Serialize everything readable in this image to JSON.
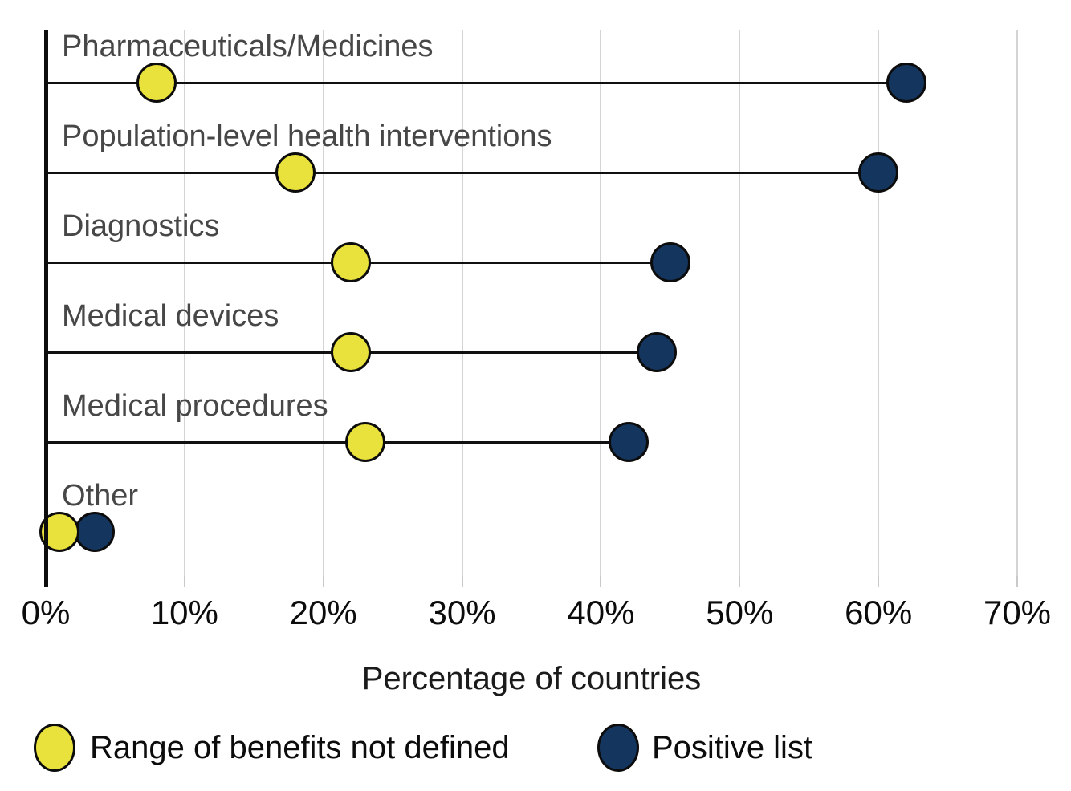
{
  "chart_data": {
    "type": "scatter",
    "subtype": "dumbbell",
    "categories": [
      "Pharmaceuticals/Medicines",
      "Population-level health interventions",
      "Diagnostics",
      "Medical devices",
      "Medical procedures",
      "Other"
    ],
    "series": [
      {
        "name": "Range of benefits not defined",
        "color": "#e9e13c",
        "values": [
          8,
          18,
          22,
          22,
          23,
          1
        ]
      },
      {
        "name": "Positive list",
        "color": "#14355e",
        "values": [
          62,
          60,
          45,
          44,
          42,
          3.5
        ]
      }
    ],
    "xlabel": "Percentage of countries",
    "x_tick_labels": [
      "0%",
      "10%",
      "20%",
      "30%",
      "40%",
      "50%",
      "60%",
      "70%"
    ],
    "xlim": [
      0,
      70
    ],
    "grid": "vertical",
    "legend_position": "bottom"
  },
  "colors": {
    "yellow_series": "#e9e13c",
    "navy_series": "#14355e",
    "gridline": "#d4d4d4",
    "axis": "#0d0d0d",
    "category_label": "#474747",
    "tick_label": "#0c0c0c"
  }
}
